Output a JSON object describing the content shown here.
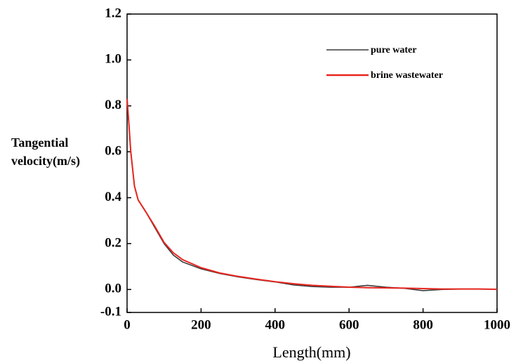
{
  "chart_data": {
    "type": "line",
    "x_label": "Length(mm)",
    "y_label": "Tangential velocity(m/s)",
    "x": [
      0,
      5,
      10,
      20,
      30,
      50,
      75,
      100,
      125,
      150,
      200,
      250,
      300,
      350,
      400,
      450,
      500,
      550,
      600,
      650,
      700,
      750,
      800,
      850,
      900,
      950,
      1000
    ],
    "series": [
      {
        "name": "pure water",
        "color": "#3a3a3a",
        "values": [
          0.83,
          0.72,
          0.6,
          0.45,
          0.39,
          0.34,
          0.27,
          0.2,
          0.15,
          0.12,
          0.09,
          0.07,
          0.055,
          0.043,
          0.033,
          0.02,
          0.013,
          0.01,
          0.01,
          0.018,
          0.01,
          0.005,
          -0.005,
          0.0,
          0.002,
          0.002,
          0.001
        ]
      },
      {
        "name": "brine wastewater",
        "color": "#e8251f",
        "values": [
          0.83,
          0.72,
          0.6,
          0.45,
          0.39,
          0.34,
          0.275,
          0.205,
          0.16,
          0.13,
          0.095,
          0.072,
          0.057,
          0.045,
          0.034,
          0.025,
          0.018,
          0.014,
          0.01,
          0.008,
          0.007,
          0.006,
          0.004,
          0.002,
          0.002,
          0.002,
          0.001
        ]
      }
    ],
    "xlim": [
      0,
      1000
    ],
    "xticks": [
      0,
      200,
      400,
      600,
      800,
      1000
    ],
    "ylim": [
      -0.1,
      1.2
    ],
    "yticks": [
      -0.1,
      {
        "value": 0,
        "label": "0.0"
      },
      0.2,
      0.4,
      0.6,
      0.8,
      {
        "value": 1,
        "label": "1.0"
      },
      1.2
    ],
    "legend": "upper right",
    "grid": false
  }
}
